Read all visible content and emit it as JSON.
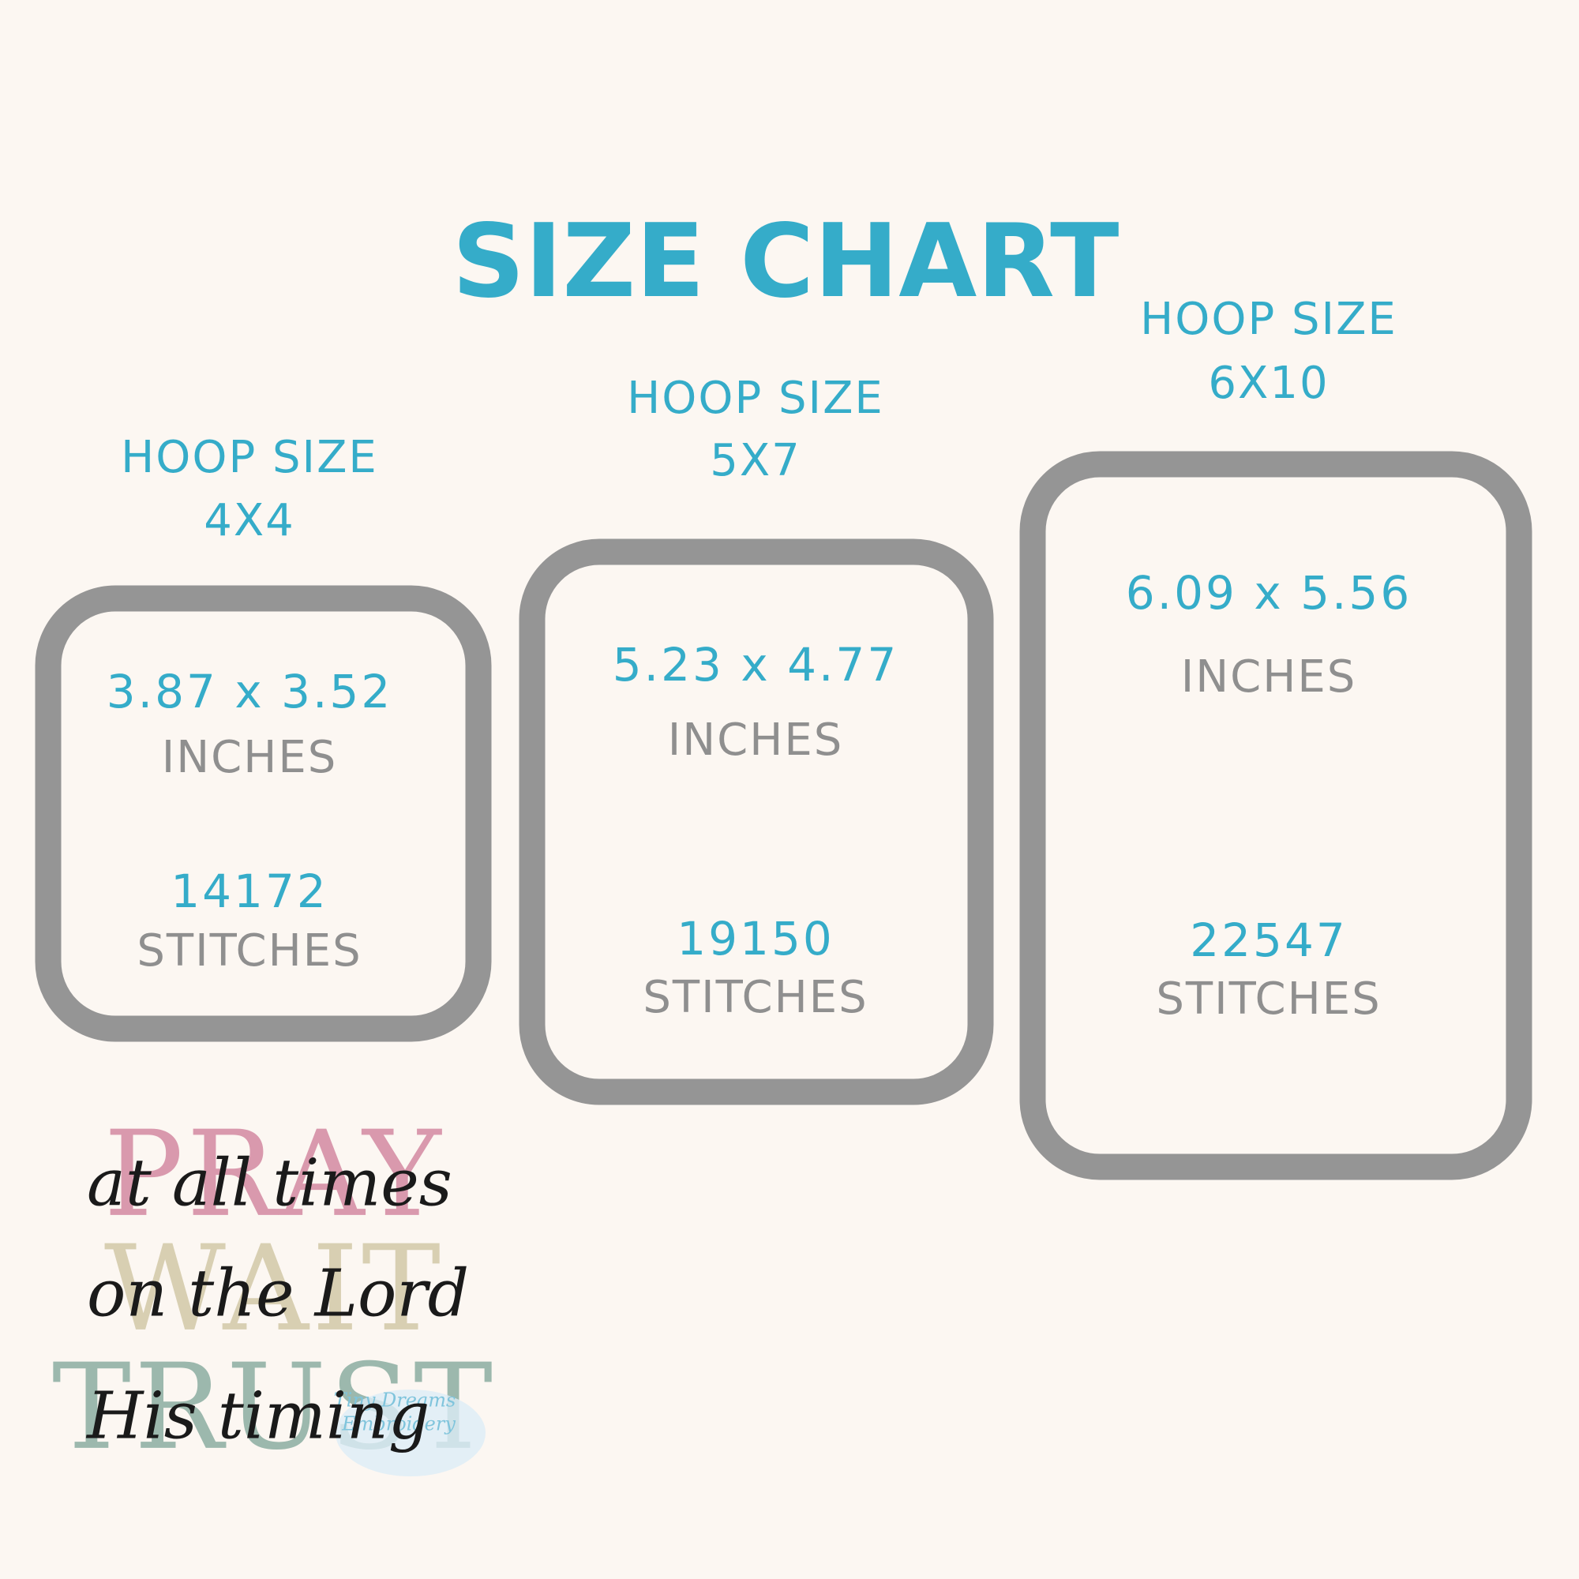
{
  "title": "SIZE CHART",
  "hoops": [
    {
      "label": "HOOP SIZE",
      "size": "4X4",
      "dimensions": "3.87 x 3.52",
      "dimensions_unit": "INCHES",
      "stitches": 14172,
      "stitches_unit": "STITCHES"
    },
    {
      "label": "HOOP SIZE",
      "size": "5X7",
      "dimensions": "5.23 x 4.77",
      "dimensions_unit": "INCHES",
      "stitches": 19150,
      "stitches_unit": "STITCHES"
    },
    {
      "label": "HOOP SIZE",
      "size": "6X10",
      "dimensions": "6.09 x 5.56",
      "dimensions_unit": "INCHES",
      "stitches": 22547,
      "stitches_unit": "STITCHES"
    }
  ],
  "design": {
    "words": [
      "PRAY",
      "WAIT",
      "TRUST"
    ],
    "script": [
      "at all times",
      "on the Lord",
      "His timing"
    ],
    "watermark": [
      "Tiny Dreams",
      "Embroidery"
    ]
  }
}
